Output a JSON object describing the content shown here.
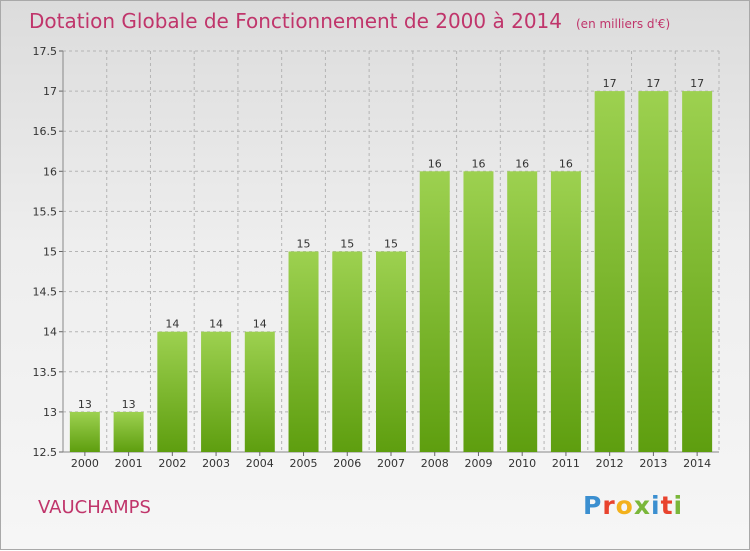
{
  "title": "Dotation Globale de Fonctionnement de 2000 à 2014",
  "unit": "(en milliers d'€)",
  "commune": "VAUCHAMPS",
  "logo": {
    "letters": [
      {
        "char": "P",
        "color": "#3b8fd0"
      },
      {
        "char": "r",
        "color": "#e8432e"
      },
      {
        "char": "o",
        "color": "#f3b11c"
      },
      {
        "char": "x",
        "color": "#7ab73a"
      },
      {
        "char": "i",
        "color": "#3b8fd0"
      },
      {
        "char": "t",
        "color": "#e8432e"
      },
      {
        "char": "i",
        "color": "#7ab73a"
      }
    ]
  },
  "colors": {
    "bar_top": "#9dd150",
    "bar_bottom": "#5e9e0f",
    "title": "#c0356b",
    "grid": "#b4b4b4",
    "axis_text": "#333333"
  },
  "chart_data": {
    "type": "bar",
    "title": "Dotation Globale de Fonctionnement de 2000 à 2014",
    "unit": "(en milliers d'€)",
    "categories": [
      "2000",
      "2001",
      "2002",
      "2003",
      "2004",
      "2005",
      "2006",
      "2007",
      "2008",
      "2009",
      "2010",
      "2011",
      "2012",
      "2013",
      "2014"
    ],
    "values": [
      13,
      13,
      14,
      14,
      14,
      15,
      15,
      15,
      16,
      16,
      16,
      16,
      17,
      17,
      17
    ],
    "data_labels": [
      "13",
      "13",
      "14",
      "14",
      "14",
      "15",
      "15",
      "15",
      "16",
      "16",
      "16",
      "16",
      "17",
      "17",
      "17"
    ],
    "ylim": [
      12.5,
      17.5
    ],
    "yticks": [
      12.5,
      13,
      13.5,
      14,
      14.5,
      15,
      15.5,
      16,
      16.5,
      17,
      17.5
    ],
    "ytick_labels": [
      "12.5",
      "13",
      "13.5",
      "14",
      "14.5",
      "15",
      "15.5",
      "16",
      "16.5",
      "17",
      "17.5"
    ],
    "grid": true,
    "xlabel": "",
    "ylabel": ""
  }
}
